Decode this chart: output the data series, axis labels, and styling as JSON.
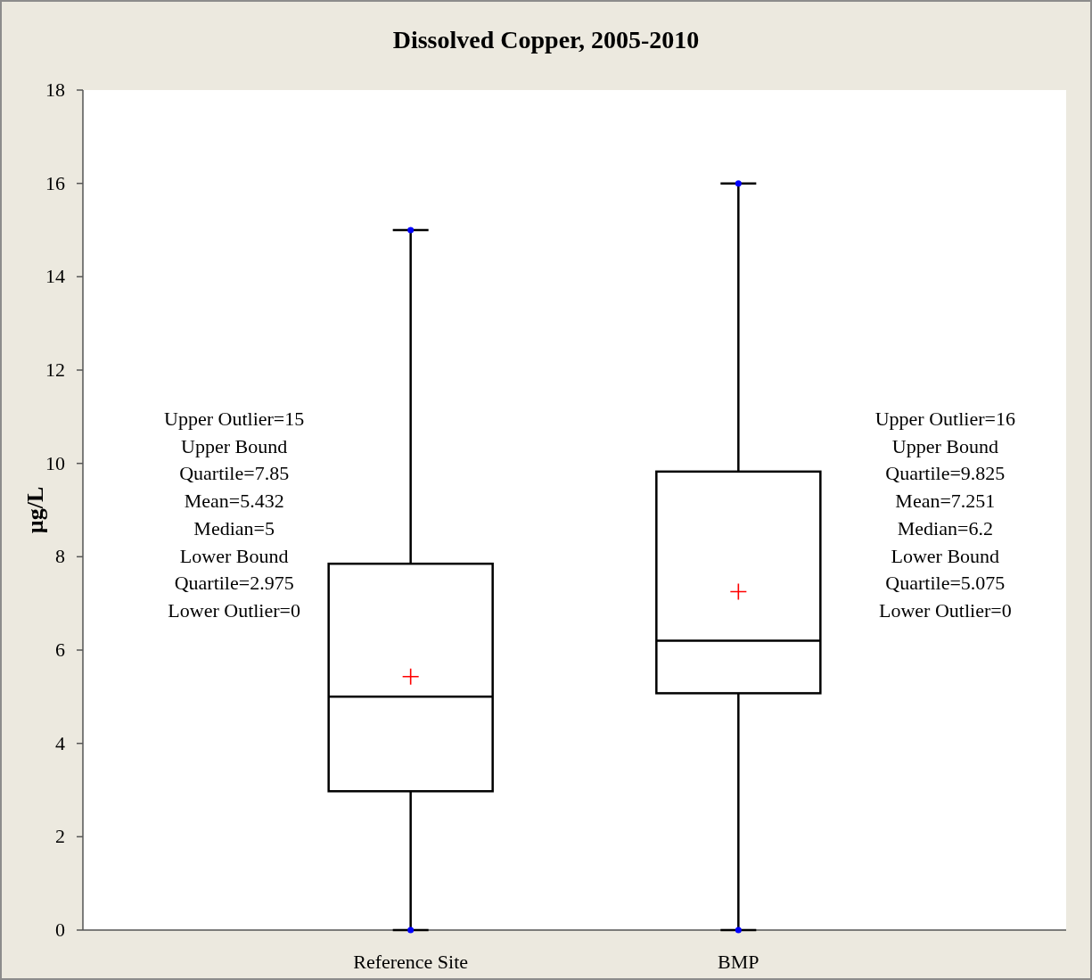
{
  "chart_data": {
    "type": "box",
    "title": "Dissolved Copper, 2005-2010",
    "ylabel": "µg/L",
    "categories": [
      "Reference Site",
      "BMP"
    ],
    "boxes": [
      {
        "low": 0,
        "q1": 2.975,
        "median": 5,
        "q3": 7.85,
        "high": 15,
        "mean": 5.432,
        "outliers": [
          15,
          0
        ]
      },
      {
        "low": 0,
        "q1": 5.075,
        "median": 6.2,
        "q3": 9.825,
        "high": 16,
        "mean": 7.251,
        "outliers": [
          16,
          0
        ]
      }
    ],
    "color": "#000000",
    "ylim": [
      0,
      18
    ],
    "yticks": [
      0,
      2,
      4,
      6,
      8,
      10,
      12,
      14,
      16,
      18
    ],
    "grid": false,
    "annotations": [
      "Upper Outlier=15\nUpper Bound\nQuartile=7.85\nMean=5.432\nMedian=5\nLower Bound\nQuartile=2.975\nLower Outlier=0",
      "Upper Outlier=16\nUpper Bound\nQuartile=9.825\nMean=7.251\nMedian=6.2\nLower Bound\nQuartile=5.075\nLower Outlier=0"
    ]
  }
}
